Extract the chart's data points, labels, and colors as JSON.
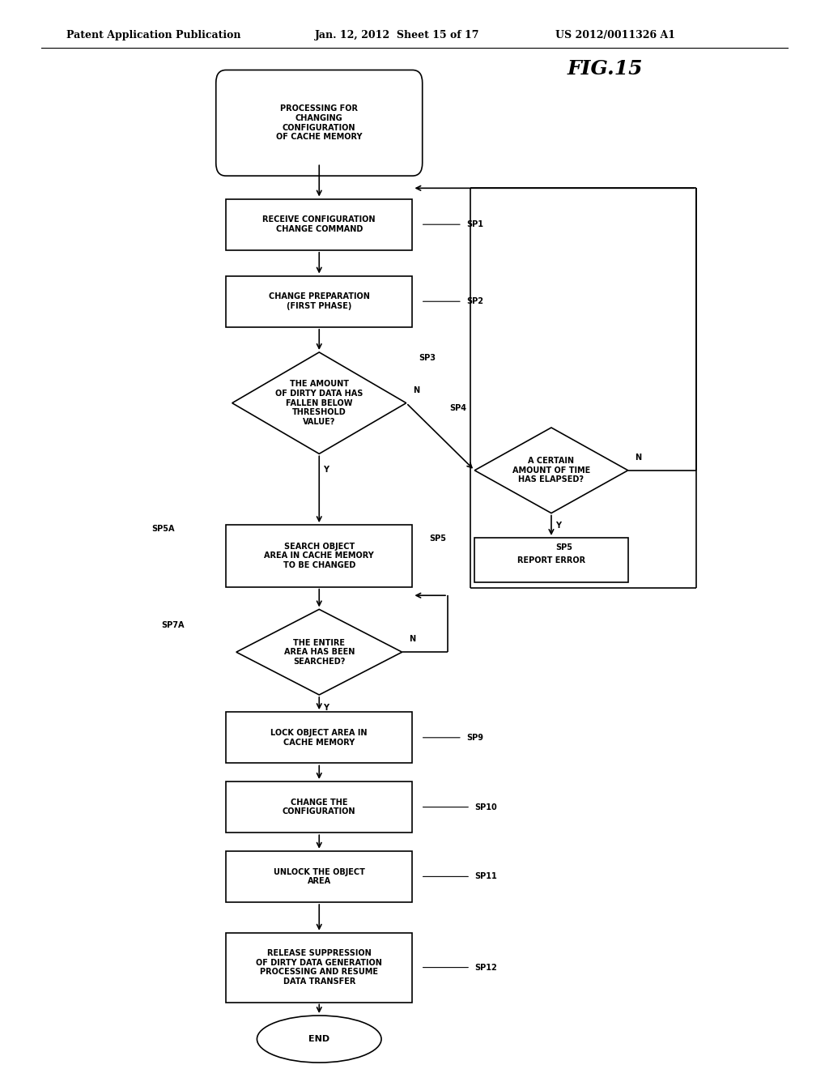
{
  "title": "FIG.15",
  "header_left": "Patent Application Publication",
  "header_center": "Jan. 12, 2012  Sheet 15 of 17",
  "header_right": "US 2012/0011326 A1",
  "bg_color": "#ffffff",
  "lw": 1.2,
  "fs": 7.0,
  "fs_header": 9.0,
  "fs_title": 18,
  "arrow_style": "->",
  "ec": "#000000",
  "fc": "#ffffff"
}
